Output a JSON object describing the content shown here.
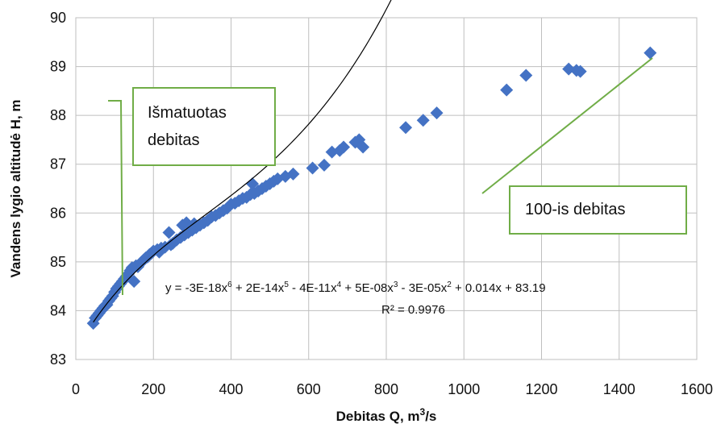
{
  "chart_data": {
    "type": "scatter",
    "title": "",
    "xlabel": "Debitas Q, m",
    "xlabel_sup": "3",
    "xlabel_tail": "/s",
    "ylabel": "Vandens lygio altitudė H, m",
    "xlim": [
      0,
      1600
    ],
    "ylim": [
      83,
      90
    ],
    "xticks": [
      "0",
      "200",
      "400",
      "600",
      "800",
      "1000",
      "1200",
      "1400",
      "1600"
    ],
    "yticks": [
      "83",
      "84",
      "85",
      "86",
      "87",
      "88",
      "89",
      "90"
    ],
    "grid": true,
    "marker_color": "#4472C4",
    "trendline_color": "#000000",
    "callout_color": "#70AD47",
    "points": [
      [
        45,
        83.74
      ],
      [
        50,
        83.85
      ],
      [
        55,
        83.9
      ],
      [
        60,
        83.95
      ],
      [
        65,
        84.0
      ],
      [
        70,
        84.05
      ],
      [
        75,
        84.1
      ],
      [
        80,
        84.12
      ],
      [
        85,
        84.2
      ],
      [
        90,
        84.25
      ],
      [
        95,
        84.3
      ],
      [
        100,
        84.38
      ],
      [
        105,
        84.45
      ],
      [
        110,
        84.5
      ],
      [
        115,
        84.55
      ],
      [
        120,
        84.6
      ],
      [
        125,
        84.65
      ],
      [
        130,
        84.7
      ],
      [
        135,
        84.75
      ],
      [
        140,
        84.82
      ],
      [
        145,
        84.88
      ],
      [
        150,
        84.6
      ],
      [
        155,
        84.92
      ],
      [
        160,
        84.9
      ],
      [
        165,
        84.96
      ],
      [
        170,
        85.0
      ],
      [
        175,
        85.04
      ],
      [
        180,
        85.08
      ],
      [
        185,
        85.1
      ],
      [
        190,
        85.15
      ],
      [
        195,
        85.18
      ],
      [
        200,
        85.22
      ],
      [
        210,
        85.25
      ],
      [
        215,
        85.2
      ],
      [
        220,
        85.28
      ],
      [
        230,
        85.3
      ],
      [
        240,
        85.6
      ],
      [
        245,
        85.35
      ],
      [
        250,
        85.38
      ],
      [
        260,
        85.45
      ],
      [
        270,
        85.5
      ],
      [
        275,
        85.75
      ],
      [
        280,
        85.55
      ],
      [
        285,
        85.8
      ],
      [
        290,
        85.6
      ],
      [
        300,
        85.65
      ],
      [
        305,
        85.78
      ],
      [
        310,
        85.7
      ],
      [
        320,
        85.75
      ],
      [
        330,
        85.8
      ],
      [
        340,
        85.85
      ],
      [
        350,
        85.92
      ],
      [
        360,
        85.95
      ],
      [
        370,
        86.0
      ],
      [
        380,
        86.05
      ],
      [
        390,
        86.1
      ],
      [
        400,
        86.18
      ],
      [
        410,
        86.2
      ],
      [
        420,
        86.25
      ],
      [
        430,
        86.3
      ],
      [
        440,
        86.32
      ],
      [
        450,
        86.38
      ],
      [
        455,
        86.6
      ],
      [
        460,
        86.4
      ],
      [
        470,
        86.45
      ],
      [
        480,
        86.5
      ],
      [
        490,
        86.55
      ],
      [
        500,
        86.6
      ],
      [
        510,
        86.65
      ],
      [
        520,
        86.7
      ],
      [
        540,
        86.75
      ],
      [
        560,
        86.8
      ],
      [
        610,
        86.92
      ],
      [
        640,
        86.98
      ],
      [
        660,
        87.25
      ],
      [
        680,
        87.28
      ],
      [
        690,
        87.35
      ],
      [
        720,
        87.45
      ],
      [
        730,
        87.5
      ],
      [
        740,
        87.35
      ],
      [
        850,
        87.75
      ],
      [
        895,
        87.9
      ],
      [
        930,
        88.05
      ],
      [
        1110,
        88.52
      ],
      [
        1160,
        88.82
      ],
      [
        1270,
        88.95
      ],
      [
        1290,
        88.92
      ],
      [
        1300,
        88.9
      ],
      [
        1480,
        89.28
      ]
    ],
    "trendline_coeffs": [
      -3e-18,
      2e-14,
      -4e-11,
      5e-08,
      -3e-05,
      0.014,
      83.19
    ],
    "trendline_range": [
      45,
      1480
    ],
    "equation": {
      "prefix": "y = -3E-18x",
      "e1": "6",
      "t2": " + 2E-14x",
      "e2": "5",
      "t3": " - 4E-11x",
      "e3": "4",
      "t4": " + 5E-08x",
      "e4": "3",
      "t5": " - 3E-05x",
      "e5": "2",
      "t6": " + 0.014x + 83.19"
    },
    "r2_label": "R² = 0.9976",
    "callouts": {
      "measured_line1": "Išmatuotas",
      "measured_line2": "debitas",
      "hundred": "100-is debitas"
    }
  }
}
